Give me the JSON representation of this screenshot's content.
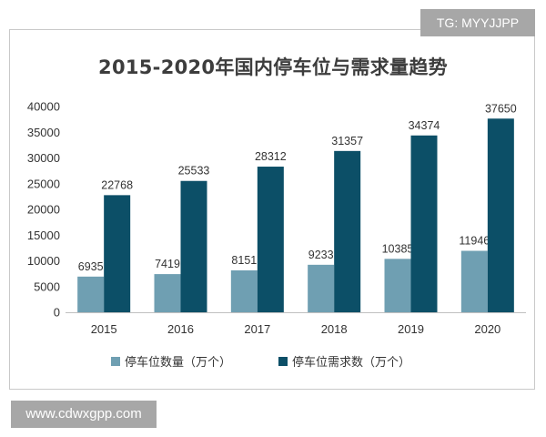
{
  "watermark_top": "TG: MYYJJPP",
  "watermark_bottom": "www.cdwxgpp.com",
  "colors": {
    "supply": "#6f9fb2",
    "demand": "#0c4f67"
  },
  "chart_data": {
    "type": "bar",
    "title": "2015-2020年国内停车位与需求量趋势",
    "categories": [
      "2015",
      "2016",
      "2017",
      "2018",
      "2019",
      "2020"
    ],
    "series": [
      {
        "name": "停车位数量（万个）",
        "values": [
          6935,
          7419,
          8151,
          9233,
          10385,
          11946
        ],
        "labels": [
          "6935",
          "7419",
          "8151",
          "9233",
          "10385",
          "11946"
        ]
      },
      {
        "name": "停车位需求数（万个）",
        "values": [
          22768,
          25533,
          28312,
          31357,
          34374,
          37650
        ],
        "labels": [
          "22768",
          "25533",
          "28312",
          "31357",
          "34374",
          "37650"
        ]
      }
    ],
    "yticks": [
      "0",
      "5000",
      "10000",
      "15000",
      "20000",
      "25000",
      "30000",
      "35000",
      "40000"
    ],
    "ylim": [
      0,
      40000
    ],
    "grid": false,
    "legend_position": "bottom"
  }
}
